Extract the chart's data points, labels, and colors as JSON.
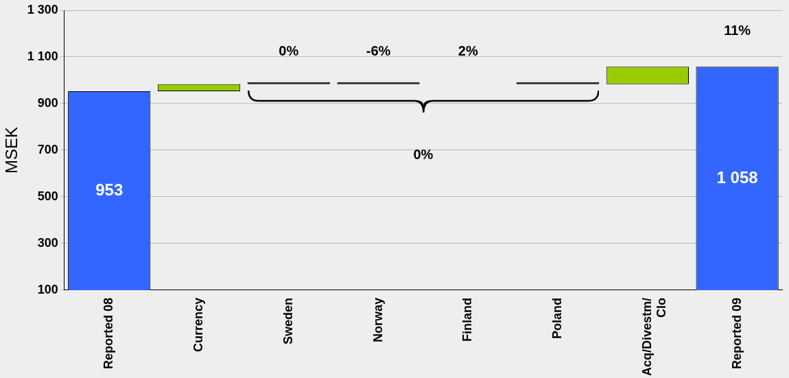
{
  "chart_data": {
    "type": "bar",
    "ylabel": "MSEK",
    "categories": [
      "Reported 08",
      "Currency",
      "Sweden",
      "Norway",
      "Finland",
      "Poland",
      "Acq/Divestm/\nClo",
      "Reported 09"
    ],
    "values": [
      953,
      30,
      0,
      0,
      null,
      0,
      75,
      1058
    ],
    "base": [
      null,
      953,
      983,
      983,
      null,
      983,
      983,
      null
    ],
    "colors": [
      "#3366ff",
      "#99cc00",
      "#000000",
      "#000000",
      "#000000",
      "#000000",
      "#99cc00",
      "#3366ff"
    ],
    "value_labels": [
      "953",
      null,
      null,
      null,
      null,
      null,
      null,
      "1 058"
    ],
    "annotations": [
      "0%",
      "-6%",
      "2%",
      "11%",
      "0%"
    ],
    "ylim": [
      100,
      1300
    ],
    "yticks": [
      100,
      300,
      500,
      700,
      900,
      {
        "value": 1100,
        "label": "1 100"
      },
      {
        "value": 1300,
        "label": "1 300"
      }
    ],
    "grid": "y",
    "legend": false
  }
}
